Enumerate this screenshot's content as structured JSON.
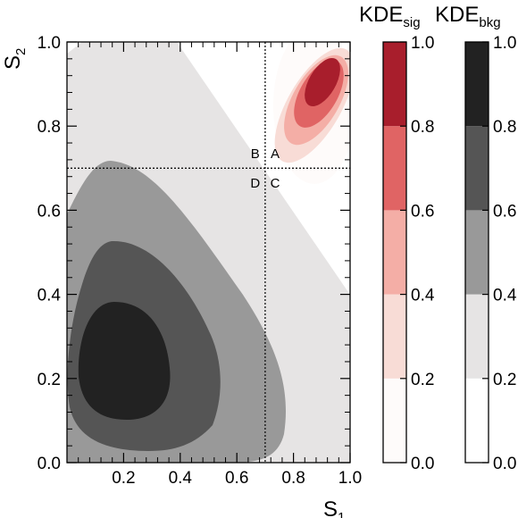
{
  "chart_data": {
    "type": "contour",
    "xlabel": "S",
    "xlabel_sub": "1",
    "ylabel": "S",
    "ylabel_sub": "2",
    "xlim": [
      0.0,
      1.0
    ],
    "ylim": [
      0.0,
      1.0
    ],
    "x_ticks": [
      "0.2",
      "0.4",
      "0.6",
      "0.8",
      "1.0"
    ],
    "y_ticks": [
      "0.0",
      "0.2",
      "0.4",
      "0.6",
      "0.8",
      "1.0"
    ],
    "cut_lines": {
      "x": 0.7,
      "y": 0.7
    },
    "region_labels": [
      {
        "text": "A",
        "x": 0.735,
        "y": 0.735
      },
      {
        "text": "B",
        "x": 0.665,
        "y": 0.735
      },
      {
        "text": "C",
        "x": 0.735,
        "y": 0.665
      },
      {
        "text": "D",
        "x": 0.665,
        "y": 0.665
      }
    ],
    "levels": [
      0.0,
      0.2,
      0.4,
      0.6,
      0.8,
      1.0
    ],
    "signal": {
      "title": "KDE",
      "title_sub": "sig",
      "colors": [
        "#fefbfa",
        "#f8dcd6",
        "#f4aea6",
        "#e06464",
        "#a81e2c"
      ],
      "peak": [
        0.89,
        0.88
      ]
    },
    "background": {
      "title": "KDE",
      "title_sub": "bkg",
      "colors": [
        "#ffffff",
        "#e6e4e4",
        "#999999",
        "#555555",
        "#222222"
      ],
      "peak": [
        0.2,
        0.2
      ]
    },
    "colorbar_ticks": [
      "0.0",
      "0.2",
      "0.4",
      "0.6",
      "0.8",
      "1.0"
    ]
  }
}
